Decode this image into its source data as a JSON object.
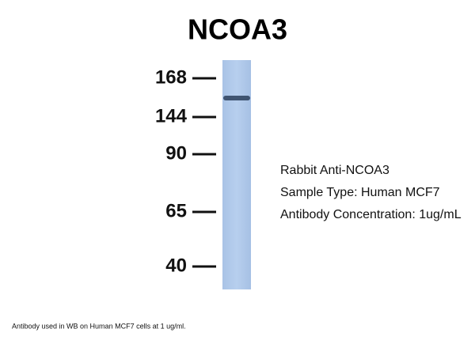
{
  "title": "NCOA3",
  "markers": [
    "168",
    "144",
    "90",
    "65",
    "40"
  ],
  "info": [
    "Rabbit Anti-NCOA3",
    "Sample Type: Human MCF7",
    "Antibody Concentration: 1ug/mL"
  ],
  "caption": "Antibody used in WB on Human MCF7 cells at 1 ug/ml."
}
